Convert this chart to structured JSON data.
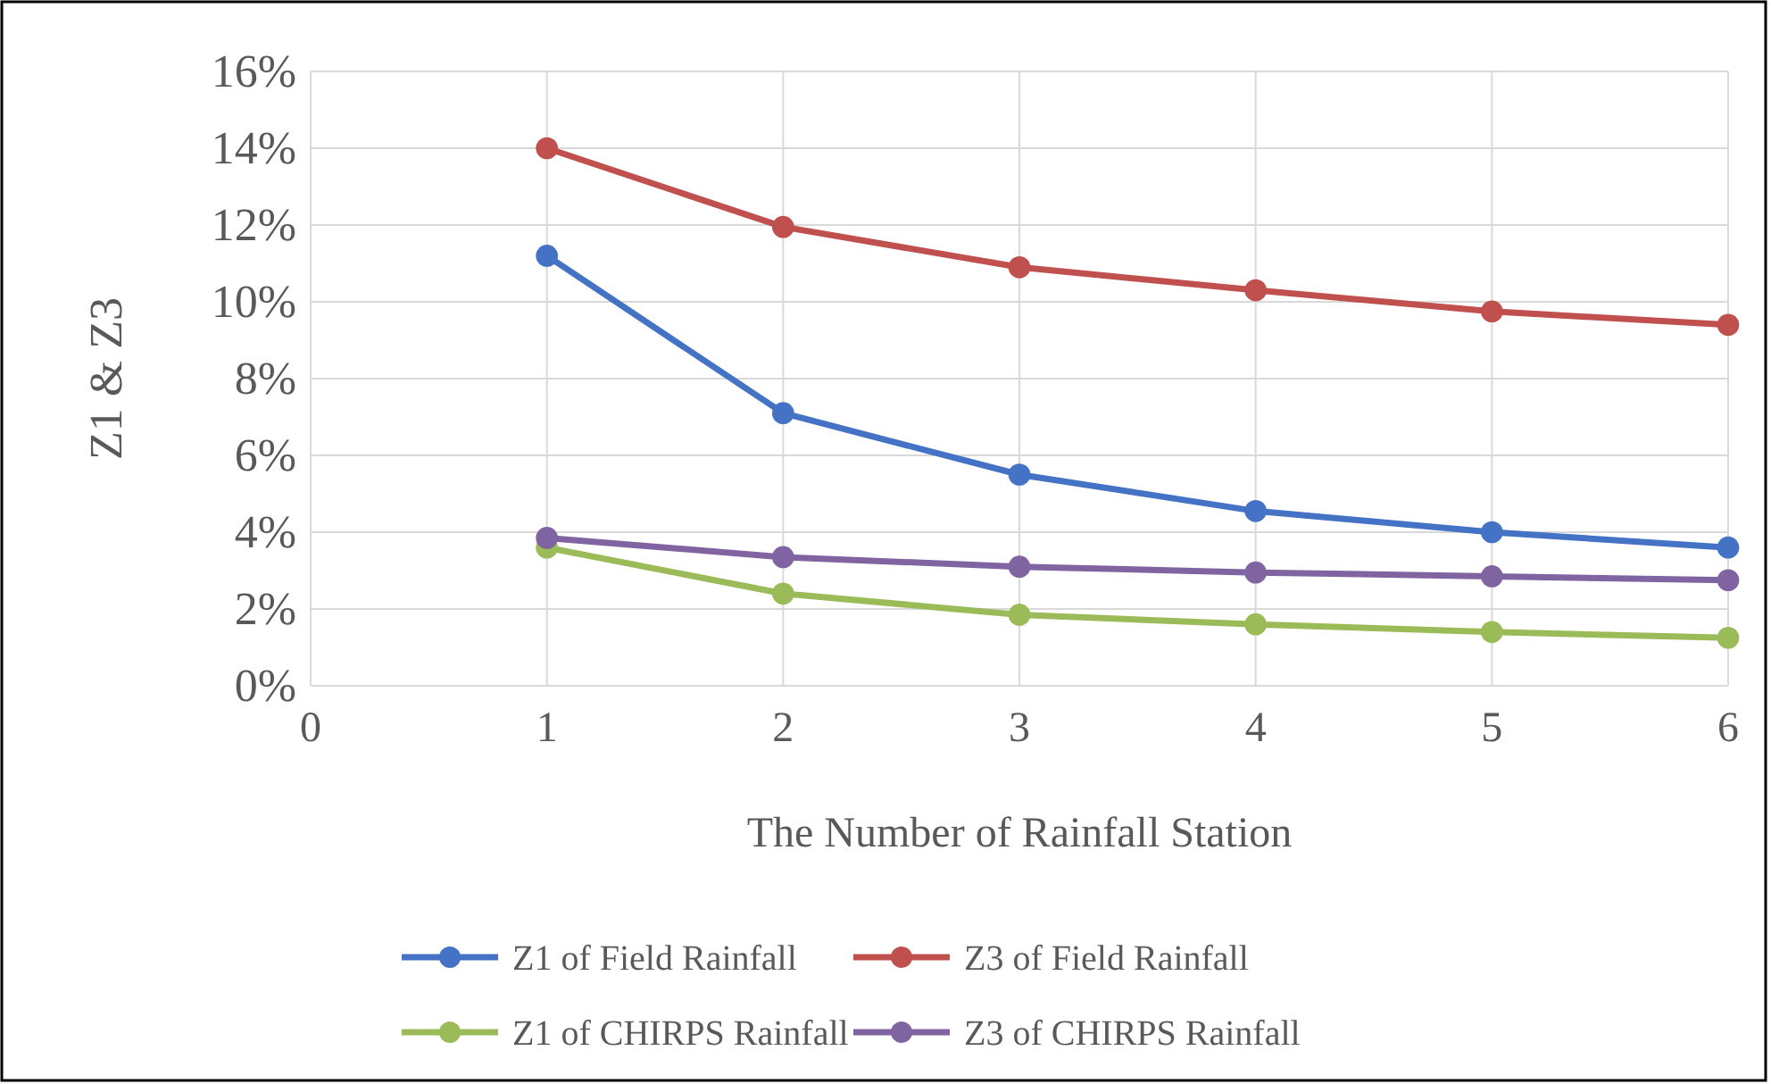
{
  "chart_data": {
    "type": "line",
    "xlabel": "The Number of Rainfall  Station",
    "ylabel": "Z1 & Z3",
    "x": [
      1,
      2,
      3,
      4,
      5,
      6
    ],
    "series": [
      {
        "name": "Z1 of Field Rainfall",
        "color": "#4472c4",
        "values": [
          11.2,
          7.1,
          5.5,
          4.55,
          4.0,
          3.6
        ]
      },
      {
        "name": "Z3 of Field Rainfall",
        "color": "#c0504d",
        "values": [
          14.0,
          11.95,
          10.9,
          10.3,
          9.75,
          9.4
        ]
      },
      {
        "name": "Z1 of CHIRPS Rainfall",
        "color": "#9bbb59",
        "values": [
          3.6,
          2.4,
          1.85,
          1.6,
          1.4,
          1.25
        ]
      },
      {
        "name": "Z3 of CHIRPS Rainfall",
        "color": "#8064a2",
        "values": [
          3.85,
          3.35,
          3.1,
          2.95,
          2.85,
          2.75
        ]
      }
    ],
    "xlim": [
      0,
      6
    ],
    "xticks": [
      0,
      1,
      2,
      3,
      4,
      5,
      6
    ],
    "ylim": [
      0,
      16
    ],
    "yticks": [
      {
        "value": 0,
        "label": "0%"
      },
      {
        "value": 2,
        "label": "2%"
      },
      {
        "value": 4,
        "label": "4%"
      },
      {
        "value": 6,
        "label": "6%"
      },
      {
        "value": 8,
        "label": "8%"
      },
      {
        "value": 10,
        "label": "10%"
      },
      {
        "value": 12,
        "label": "12%"
      },
      {
        "value": 14,
        "label": "14%"
      },
      {
        "value": 16,
        "label": "16%"
      }
    ],
    "grid": true,
    "legend": "bottom",
    "marker": "circle",
    "line_style": "solid"
  }
}
